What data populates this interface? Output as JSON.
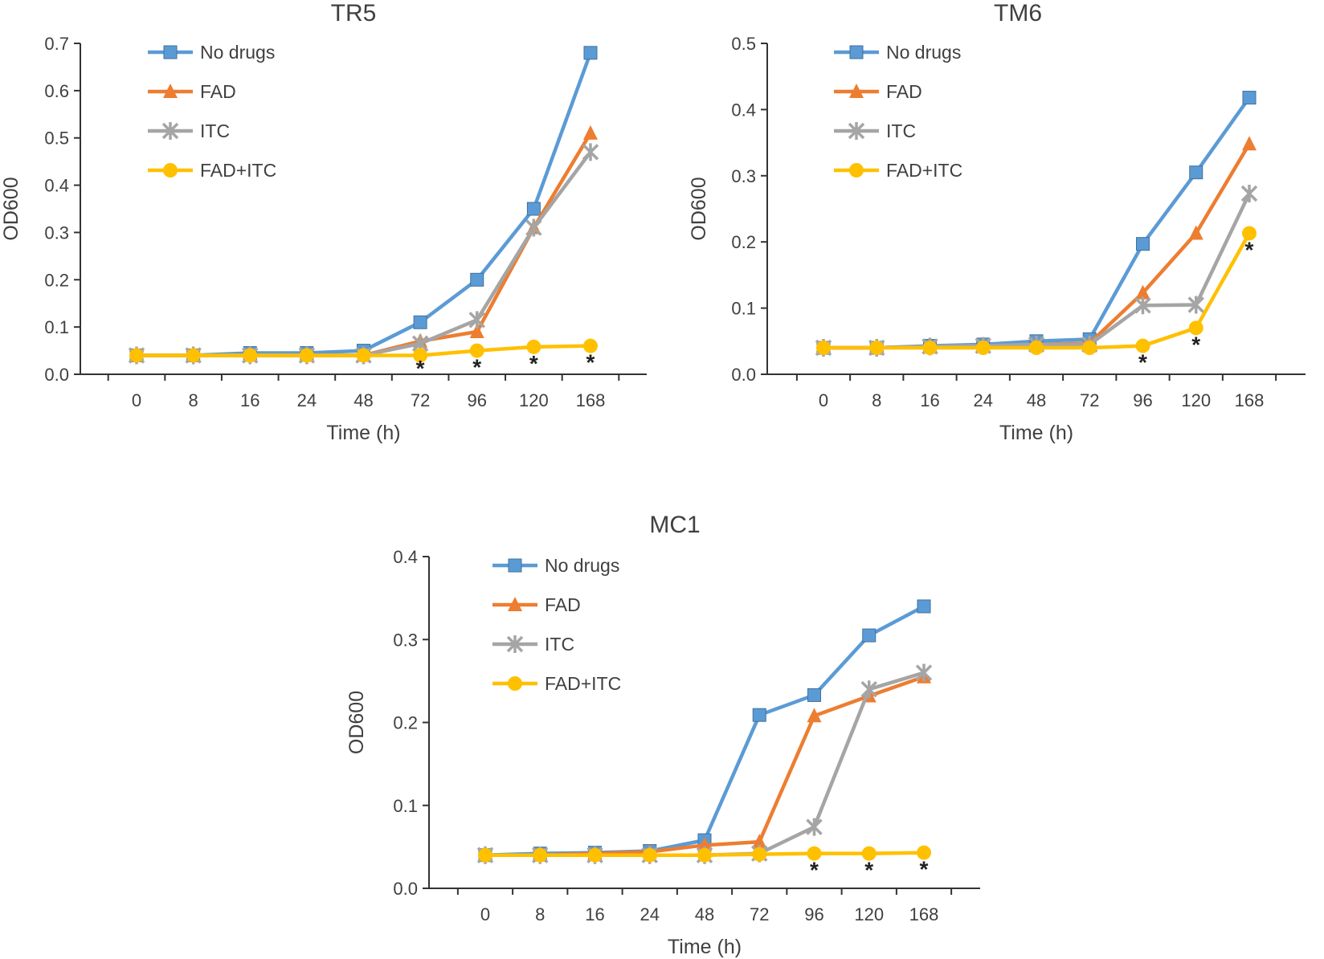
{
  "chart_data": [
    {
      "type": "line",
      "title": "TR5",
      "xlabel": "Time (h)",
      "ylabel": "OD600",
      "categories": [
        "0",
        "8",
        "16",
        "24",
        "48",
        "72",
        "96",
        "120",
        "168"
      ],
      "ylim": [
        0,
        0.7
      ],
      "yticks": [
        "0.0",
        "0.1",
        "0.2",
        "0.3",
        "0.4",
        "0.5",
        "0.6",
        "0.7"
      ],
      "legend_position": "top-left",
      "series": [
        {
          "name": "No drugs",
          "color": "#5B9BD5",
          "marker": "square",
          "values": [
            0.04,
            0.04,
            0.045,
            0.045,
            0.05,
            0.11,
            0.2,
            0.35,
            0.68
          ]
        },
        {
          "name": "FAD",
          "color": "#ED7D31",
          "marker": "triangle",
          "values": [
            0.04,
            0.04,
            0.04,
            0.04,
            0.04,
            0.07,
            0.09,
            0.31,
            0.51
          ]
        },
        {
          "name": "ITC",
          "color": "#A5A5A5",
          "marker": "star",
          "values": [
            0.04,
            0.04,
            0.04,
            0.04,
            0.04,
            0.065,
            0.115,
            0.31,
            0.47
          ]
        },
        {
          "name": "FAD+ITC",
          "color": "#FFC000",
          "marker": "circle",
          "values": [
            0.04,
            0.04,
            0.04,
            0.04,
            0.04,
            0.04,
            0.05,
            0.058,
            0.06
          ]
        }
      ],
      "significance": {
        "symbol": "*",
        "categories": [
          "72",
          "96",
          "120",
          "168"
        ]
      }
    },
    {
      "type": "line",
      "title": "TM6",
      "xlabel": "Time (h)",
      "ylabel": "OD600",
      "categories": [
        "0",
        "8",
        "16",
        "24",
        "48",
        "72",
        "96",
        "120",
        "168"
      ],
      "ylim": [
        0,
        0.5
      ],
      "yticks": [
        "0.0",
        "0.1",
        "0.2",
        "0.3",
        "0.4",
        "0.5"
      ],
      "legend_position": "top-left",
      "series": [
        {
          "name": "No drugs",
          "color": "#5B9BD5",
          "marker": "square",
          "values": [
            0.04,
            0.04,
            0.043,
            0.045,
            0.05,
            0.053,
            0.197,
            0.305,
            0.418
          ]
        },
        {
          "name": "FAD",
          "color": "#ED7D31",
          "marker": "triangle",
          "values": [
            0.04,
            0.04,
            0.042,
            0.043,
            0.045,
            0.047,
            0.123,
            0.213,
            0.348
          ]
        },
        {
          "name": "ITC",
          "color": "#A5A5A5",
          "marker": "star",
          "values": [
            0.04,
            0.04,
            0.042,
            0.043,
            0.045,
            0.045,
            0.104,
            0.105,
            0.273
          ]
        },
        {
          "name": "FAD+ITC",
          "color": "#FFC000",
          "marker": "circle",
          "values": [
            0.04,
            0.04,
            0.04,
            0.04,
            0.04,
            0.04,
            0.043,
            0.07,
            0.213
          ]
        }
      ],
      "significance": {
        "symbol": "*",
        "categories": [
          "96",
          "120",
          "168"
        ]
      }
    },
    {
      "type": "line",
      "title": "MC1",
      "xlabel": "Time (h)",
      "ylabel": "OD600",
      "categories": [
        "0",
        "8",
        "16",
        "24",
        "48",
        "72",
        "96",
        "120",
        "168"
      ],
      "ylim": [
        0,
        0.4
      ],
      "yticks": [
        "0.0",
        "0.1",
        "0.2",
        "0.3",
        "0.4"
      ],
      "legend_position": "top-left",
      "series": [
        {
          "name": "No drugs",
          "color": "#5B9BD5",
          "marker": "square",
          "values": [
            0.04,
            0.042,
            0.043,
            0.045,
            0.058,
            0.209,
            0.233,
            0.305,
            0.34
          ]
        },
        {
          "name": "FAD",
          "color": "#ED7D31",
          "marker": "triangle",
          "values": [
            0.04,
            0.04,
            0.042,
            0.044,
            0.052,
            0.056,
            0.208,
            0.232,
            0.255
          ]
        },
        {
          "name": "ITC",
          "color": "#A5A5A5",
          "marker": "star",
          "values": [
            0.04,
            0.04,
            0.04,
            0.04,
            0.04,
            0.042,
            0.074,
            0.24,
            0.26
          ]
        },
        {
          "name": "FAD+ITC",
          "color": "#FFC000",
          "marker": "circle",
          "values": [
            0.04,
            0.04,
            0.04,
            0.04,
            0.04,
            0.041,
            0.042,
            0.042,
            0.043
          ]
        }
      ],
      "significance": {
        "symbol": "*",
        "categories": [
          "96",
          "120",
          "168"
        ]
      }
    }
  ]
}
